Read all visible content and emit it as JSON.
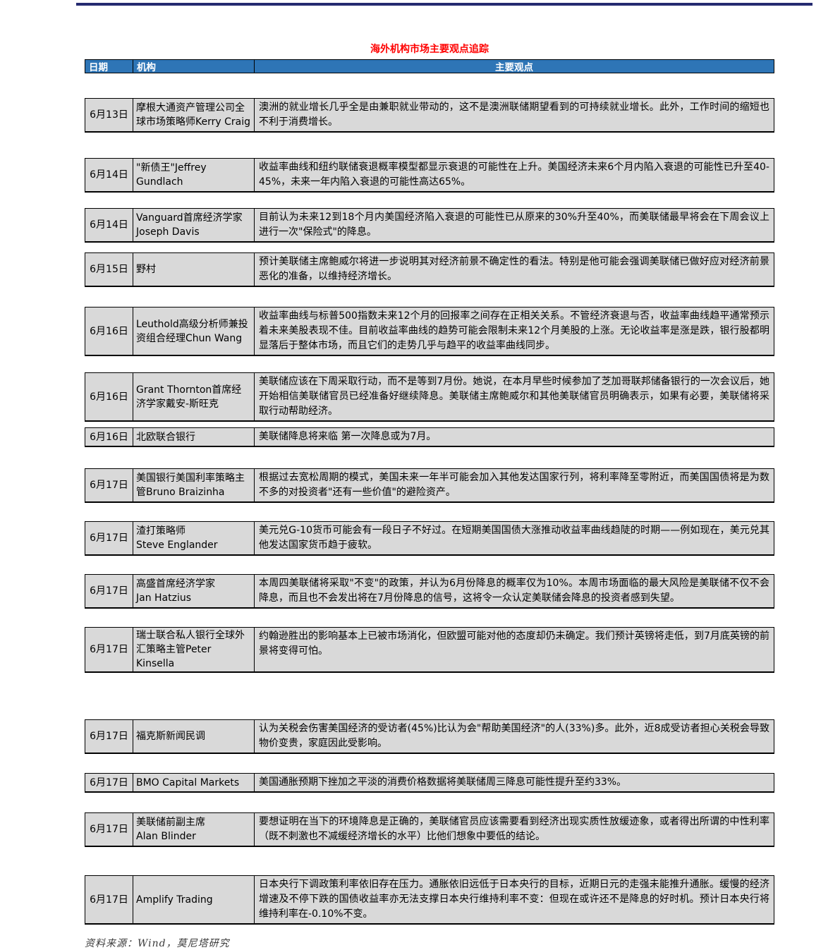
{
  "page": {
    "title": "海外机构市场主要观点追踪",
    "source_note": "资料来源：Wind，莫尼塔研究"
  },
  "colors": {
    "title_red": "#FF0000",
    "header_bg": "#2E75B6",
    "header_text": "#FFFFFF",
    "row_bg": "#D9D9D9",
    "border": "#000000",
    "top_rule": "#252A70",
    "source_text": "#3A3A3A"
  },
  "table": {
    "columns": [
      "日期",
      "机构",
      "主要观点"
    ],
    "rows": [
      {
        "date": "6月13日",
        "org": "摩根大通资产管理公司全球市场策略师Kerry Craig",
        "opinion": "澳洲的就业增长几乎全是由兼职就业带动的，这不是澳洲联储期望看到的可持续就业增长。此外，工作时间的缩短也不利于消费增长。"
      },
      {
        "date": "6月14日",
        "org": "\"新债王\"Jeffrey Gundlach",
        "opinion": "收益率曲线和纽约联储衰退概率模型都显示衰退的可能性在上升。美国经济未来6个月内陷入衰退的可能性已升至40-45%，未来一年内陷入衰退的可能性高达65%。"
      },
      {
        "date": "6月14日",
        "org": "Vanguard首席经济学家\nJoseph Davis",
        "opinion": "目前认为未来12到18个月内美国经济陷入衰退的可能性已从原来的30%升至40%，而美联储最早将会在下周会议上进行一次\"保险式\"的降息。"
      },
      {
        "date": "6月15日",
        "org": "野村",
        "opinion": "预计美联储主席鲍威尔将进一步说明其对经济前景不确定性的看法。特别是他可能会强调美联储已做好应对经济前景恶化的准备，以维持经济增长。"
      },
      {
        "date": "6月16日",
        "org": "Leuthold高级分析师兼投资组合经理Chun Wang",
        "opinion": "收益率曲线与标普500指数未来12个月的回报率之间存在正相关关系。不管经济衰退与否，收益率曲线趋平通常预示着未来美股表现不佳。目前收益率曲线的趋势可能会限制未来12个月美股的上涨。无论收益率是涨是跌，银行股都明显落后于整体市场，而且它们的走势几乎与趋平的收益率曲线同步。"
      },
      {
        "date": "6月16日",
        "org": "Grant Thornton首席经济学家戴安-斯旺克",
        "opinion": "美联储应该在下周采取行动，而不是等到7月份。她说，在本月早些时候参加了芝加哥联邦储备银行的一次会议后，她开始相信美联储官员已经准备好继续降息。美联储主席鲍威尔和其他美联储官员明确表示，如果有必要，美联储将采取行动帮助经济。"
      },
      {
        "date": "6月16日",
        "org": "北欧联合银行",
        "opinion": "美联储降息将来临 第一次降息或为7月。"
      },
      {
        "date": "6月17日",
        "org": "美国银行美国利率策略主管Bruno Braizinha",
        "opinion": "根据过去宽松周期的模式，美国未来一年半可能会加入其他发达国家行列，将利率降至零附近，而美国国债将是为数不多的对投资者\"还有一些价值\"的避险资产。"
      },
      {
        "date": "6月17日",
        "org": "渣打策略师\nSteve Englander",
        "opinion": "美元兑G-10货币可能会有一段日子不好过。在短期美国国债大涨推动收益率曲线趋陡的时期——例如现在，美元兑其他发达国家货币趋于疲软。"
      },
      {
        "date": "6月17日",
        "org": "高盛首席经济学家\nJan Hatzius",
        "opinion": "本周四美联储将采取\"不变\"的政策，并认为6月份降息的概率仅为10%。本周市场面临的最大风险是美联储不仅不会降息，而且也不会发出将在7月份降息的信号，这将令一众认定美联储会降息的投资者感到失望。"
      },
      {
        "date": "6月17日",
        "org": "瑞士联合私人银行全球外汇策略主管Peter Kinsella",
        "opinion": "约翰逊胜出的影响基本上已被市场消化，但欧盟可能对他的态度却仍未确定。我们预计英镑将走低，到7月底英镑的前景将变得可怕。"
      },
      {
        "date": "6月17日",
        "org": "福克斯新闻民调",
        "opinion": "认为关税会伤害美国经济的受访者(45%)比认为会\"帮助美国经济\"的人(33%)多。此外，近8成受访者担心关税会导致物价变贵，家庭因此受影响。"
      },
      {
        "date": "6月17日",
        "org": "BMO Capital Markets",
        "opinion": "美国通胀预期下挫加之平淡的消费价格数据将美联储周三降息可能性提升至约33%。"
      },
      {
        "date": "6月17日",
        "org": "美联储前副主席\nAlan Blinder",
        "opinion": "要想证明在当下的环境降息是正确的，美联储官员应该需要看到经济出现实质性放缓迹象，或者得出所谓的中性利率（既不刺激也不减缓经济增长的水平）比他们想象中要低的结论。"
      },
      {
        "date": "6月17日",
        "org": "Amplify Trading",
        "opinion": "日本央行下调政策利率依旧存在压力。通胀依旧远低于日本央行的目标，近期日元的走强未能推升通胀。缓慢的经济增速及不停下跌的国债收益率亦无法支撑日本央行维持利率不变：但现在或许还不是降息的好时机。预计日本央行将维持利率在-0.10%不变。"
      }
    ]
  }
}
